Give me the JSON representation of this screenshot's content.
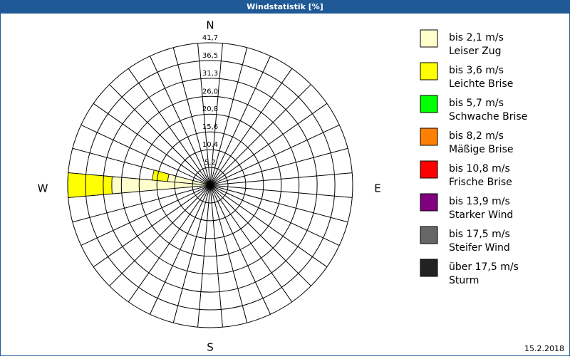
{
  "chart_data": {
    "type": "windrose",
    "title": "Windstatistik [%]",
    "date": "15.2.2018",
    "direction_labels": [
      "N",
      "E",
      "S",
      "W"
    ],
    "categories": [
      null,
      null,
      null,
      null,
      null,
      null,
      null,
      null,
      null,
      null,
      null,
      null,
      null,
      null,
      null,
      null,
      null,
      null,
      null,
      null,
      null,
      null,
      null,
      null,
      null,
      null,
      null,
      null,
      null,
      null,
      null,
      null,
      null,
      null,
      null,
      null
    ],
    "ylim": [
      0,
      41.7
    ],
    "yticks": [
      {
        "value": 5.2,
        "label": "5,2"
      },
      {
        "value": 10.4,
        "label": "10,4"
      },
      {
        "value": 15.6,
        "label": "15,6"
      },
      {
        "value": 20.8,
        "label": "20,8"
      },
      {
        "value": 26.0,
        "label": "26,0"
      },
      {
        "value": 31.3,
        "label": "31,3"
      },
      {
        "value": 36.5,
        "label": "36,5"
      },
      {
        "value": 41.7,
        "label": "41,7"
      }
    ],
    "series": [
      {
        "name": "bis 2,1 m/s",
        "description": "Leiser Zug",
        "color": "#ffffcc",
        "values": [
          0,
          0,
          0,
          0,
          0,
          0,
          0,
          0,
          1.5,
          2,
          0,
          0,
          0,
          0,
          0,
          0,
          0,
          0,
          0,
          0,
          0,
          0,
          0,
          0,
          0,
          0,
          1,
          28.8,
          12.5,
          0,
          0,
          0,
          0,
          0,
          0,
          0
        ]
      },
      {
        "name": "bis 3,6 m/s",
        "description": "Leichte Brise",
        "color": "#ffff00",
        "values": [
          0,
          0,
          0,
          0,
          0,
          0,
          0,
          0,
          0,
          0,
          0,
          0,
          0,
          0,
          0,
          0,
          0,
          0,
          0,
          0,
          0,
          0,
          0,
          0,
          0,
          0,
          0,
          12.9,
          4.5,
          0,
          0,
          0,
          0,
          0,
          0,
          0
        ]
      },
      {
        "name": "bis 5,7 m/s",
        "description": "Schwache Brise",
        "color": "#00ff00",
        "values": [
          0,
          0,
          0,
          0,
          0,
          0,
          0,
          0,
          0,
          0,
          0,
          0,
          0,
          0,
          0,
          0,
          0,
          0,
          0,
          0,
          0,
          0,
          0,
          0,
          0,
          0,
          0,
          0,
          0,
          0,
          0,
          0,
          0,
          0,
          0,
          0
        ]
      },
      {
        "name": "bis 8,2 m/s",
        "description": "Mäßige Brise",
        "color": "#ff8000",
        "values": [
          0,
          0,
          0,
          0,
          0,
          0,
          0,
          0,
          0,
          0,
          0,
          0,
          0,
          0,
          0,
          0,
          0,
          0,
          0,
          0,
          0,
          0,
          0,
          0,
          0,
          0,
          0,
          0,
          0,
          0,
          0,
          0,
          0,
          0,
          0,
          0
        ]
      },
      {
        "name": "bis 10,8 m/s",
        "description": "Frische Brise",
        "color": "#ff0000",
        "values": [
          0,
          0,
          0,
          0,
          0,
          0,
          0,
          0,
          0,
          0,
          0,
          0,
          0,
          0,
          0,
          0,
          0,
          0,
          0,
          0,
          0,
          0,
          0,
          0,
          0,
          0,
          0,
          0,
          0,
          0,
          0,
          0,
          0,
          0,
          0,
          0
        ]
      },
      {
        "name": "bis 13,9 m/s",
        "description": "Starker Wind",
        "color": "#800080",
        "values": [
          0,
          0,
          0,
          0,
          0,
          0,
          0,
          0,
          0,
          0,
          0,
          0,
          0,
          0,
          0,
          0,
          0,
          0,
          0,
          0,
          0,
          0,
          0,
          0,
          0,
          0,
          0,
          0,
          0,
          0,
          0,
          0,
          0,
          0,
          0,
          0
        ]
      },
      {
        "name": "bis 17,5 m/s",
        "description": "Steifer Wind",
        "color": "#666666",
        "values": [
          0,
          0,
          0,
          0,
          0,
          0,
          0,
          0,
          0,
          0,
          0,
          0,
          0,
          0,
          0,
          0,
          0,
          0,
          0,
          0,
          0,
          0,
          0,
          0,
          0,
          0,
          0,
          0,
          0,
          0,
          0,
          0,
          0,
          0,
          0,
          0
        ]
      },
      {
        "name": "über 17,5 m/s",
        "description": "Sturm",
        "color": "#222222",
        "values": [
          0,
          0,
          0,
          0,
          0,
          0,
          0,
          0,
          0,
          0,
          0,
          0,
          0,
          0,
          0,
          0,
          0,
          0,
          0,
          0,
          0,
          0,
          0,
          0,
          0,
          0,
          0,
          0,
          0,
          0,
          0,
          0,
          0,
          0,
          0,
          0
        ]
      }
    ]
  }
}
